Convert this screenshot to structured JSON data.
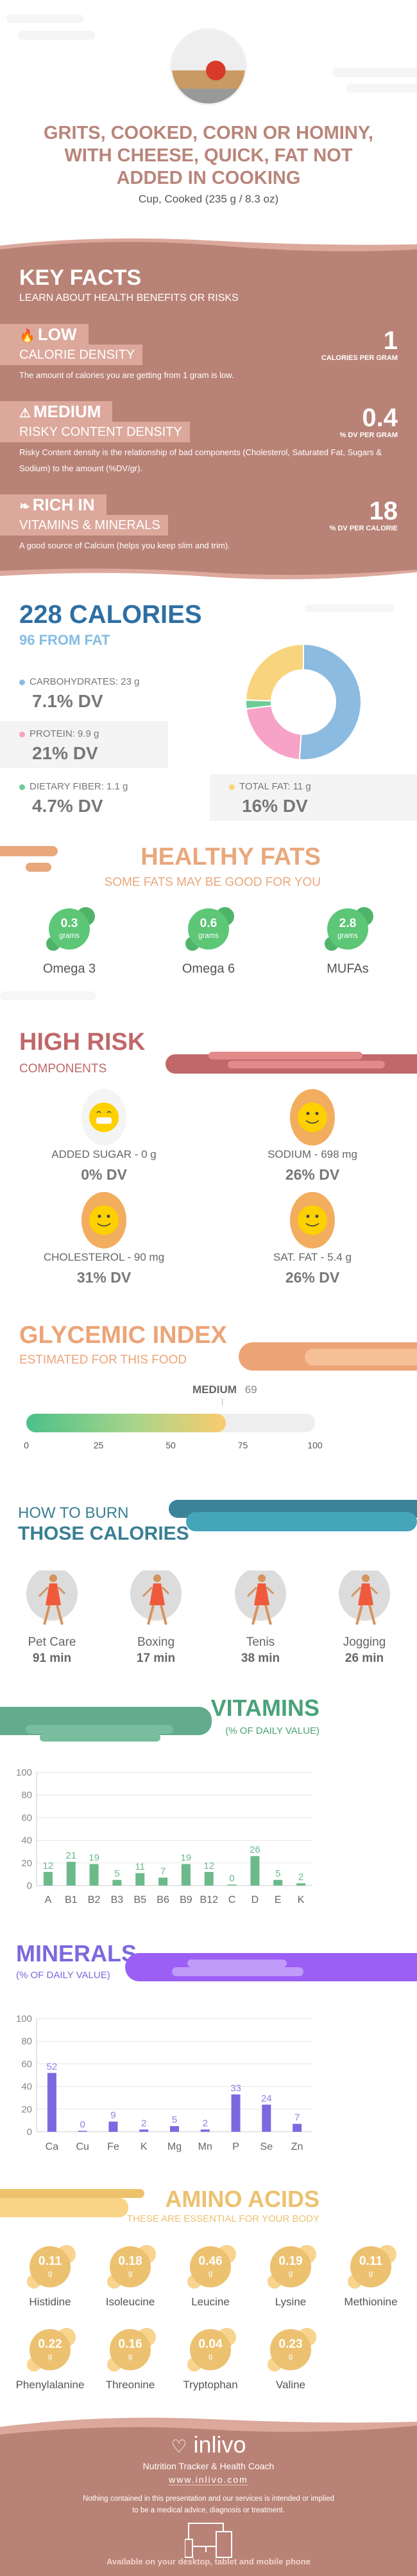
{
  "header": {
    "title_lines": [
      "GRITS, COOKED, CORN OR HOMINY,",
      "WITH CHEESE, QUICK, FAT NOT",
      "ADDED IN COOKING"
    ],
    "serving": "Cup, Cooked (235 g / 8.3 oz)"
  },
  "colors": {
    "brand": "#b98276",
    "tag": "#dca89c",
    "calories": "#2e6fa3",
    "healthy_fats": "#e8a87c",
    "high_risk": "#c0686a",
    "glycemic": "#eca477",
    "burn": "#3a7f93",
    "vitamins": "#4aa27a",
    "minerals": "#7d68e0",
    "amino": "#ecc170"
  },
  "key_facts": {
    "title": "KEY FACTS",
    "subtitle": "LEARN ABOUT HEALTH BENEFITS OR RISKS",
    "items": [
      {
        "icon": "flame-icon",
        "level": "LOW",
        "label": "CALORIE DENSITY",
        "value": "1",
        "unit": "CALORIES PER GRAM",
        "description": "The amount of calories you are getting from 1 gram is low."
      },
      {
        "icon": "warning-icon",
        "level": "MEDIUM",
        "label": "RISKY CONTENT DENSITY",
        "value": "0.4",
        "unit": "% DV PER GRAM",
        "description": "Risky Content density is the relationship of bad components (Cholesterol, Saturated Fat, Sugars & Sodium) to the amount (%DV/gr)."
      },
      {
        "icon": "leaf-icon",
        "level": "RICH  IN",
        "label": "VITAMINS & MINERALS",
        "value": "18",
        "unit": "% DV PER CALORIE",
        "description": "A good source of Calcium (helps you keep slim and trim)."
      }
    ]
  },
  "calories": {
    "title": "228 CALORIES",
    "from_fat": "96 FROM FAT",
    "macros": [
      {
        "label": "CARBOHYDRATES: 23 g",
        "dv": "7.1% DV",
        "grams": 23,
        "color": "#8bbbe0"
      },
      {
        "label": "PROTEIN: 9.9 g",
        "dv": "21% DV",
        "grams": 9.9,
        "color": "#f7a3c8"
      },
      {
        "label": "DIETARY FIBER: 1.1 g",
        "dv": "4.7% DV",
        "grams": 1.1,
        "color": "#6ecb98"
      },
      {
        "label": "TOTAL FAT: 11 g",
        "dv": "16% DV",
        "grams": 11,
        "color": "#f9d47f"
      }
    ]
  },
  "healthy_fats": {
    "title": "HEALTHY FATS",
    "subtitle": "SOME FATS MAY BE GOOD FOR YOU",
    "items": [
      {
        "value": "0.3",
        "unit": "grams",
        "name": "Omega 3"
      },
      {
        "value": "0.6",
        "unit": "grams",
        "name": "Omega 6"
      },
      {
        "value": "2.8",
        "unit": "grams",
        "name": "MUFAs"
      }
    ]
  },
  "high_risk": {
    "title": "HIGH RISK",
    "subtitle": "COMPONENTS",
    "items": [
      {
        "label": "ADDED SUGAR - 0 g",
        "dv": "0% DV",
        "icon": "grinning-face-icon"
      },
      {
        "label": "SODIUM - 698 mg",
        "dv": "26% DV",
        "icon": "smiley-face-icon"
      },
      {
        "label": "CHOLESTEROL - 90 mg",
        "dv": "31% DV",
        "icon": "smiley-face-icon"
      },
      {
        "label": "SAT. FAT - 5.4 g",
        "dv": "26% DV",
        "icon": "smiley-face-icon"
      }
    ]
  },
  "glycemic": {
    "title": "GLYCEMIC INDEX",
    "subtitle": "ESTIMATED FOR THIS FOOD",
    "level": "MEDIUM",
    "value": "69",
    "ticks": [
      "0",
      "25",
      "50",
      "75",
      "100"
    ]
  },
  "burn": {
    "title_top": "HOW TO BURN",
    "title_bottom": "THOSE CALORIES",
    "items": [
      {
        "name": "Pet Care",
        "time": "91 min",
        "icon": "dog-walking-icon"
      },
      {
        "name": "Boxing",
        "time": "17 min",
        "icon": "boxing-icon"
      },
      {
        "name": "Tenis",
        "time": "38 min",
        "icon": "tennis-icon"
      },
      {
        "name": "Jogging",
        "time": "26 min",
        "icon": "jogging-icon"
      }
    ]
  },
  "chart_data": [
    {
      "type": "bar",
      "title": "VITAMINS",
      "subtitle": "(% OF DAILY VALUE)",
      "categories": [
        "A",
        "B1",
        "B2",
        "B3",
        "B5",
        "B6",
        "B9",
        "B12",
        "C",
        "D",
        "E",
        "K"
      ],
      "values": [
        12,
        21,
        19,
        5,
        11,
        7,
        19,
        12,
        0,
        26,
        5,
        2
      ],
      "yticks": [
        "0",
        "20",
        "40",
        "60",
        "80",
        "100"
      ],
      "ylim": [
        0,
        100
      ],
      "grid": true,
      "color": "#6cb98a"
    },
    {
      "type": "bar",
      "title": "MINERALS",
      "subtitle": "(% OF DAILY VALUE)",
      "categories": [
        "Ca",
        "Cu",
        "Fe",
        "K",
        "Mg",
        "Mn",
        "P",
        "Se",
        "Zn"
      ],
      "values": [
        52,
        0,
        9,
        2,
        5,
        2,
        33,
        24,
        7
      ],
      "yticks": [
        "0",
        "20",
        "40",
        "60",
        "80",
        "100"
      ],
      "ylim": [
        0,
        100
      ],
      "grid": true,
      "color": "#7d68e0"
    }
  ],
  "amino": {
    "title": "AMINO ACIDS",
    "subtitle": "THESE ARE ESSENTIAL FOR YOUR BODY",
    "items": [
      {
        "value": "0.11",
        "unit": "g",
        "name": "Histidine"
      },
      {
        "value": "0.18",
        "unit": "g",
        "name": "Isoleucine"
      },
      {
        "value": "0.46",
        "unit": "g",
        "name": "Leucine"
      },
      {
        "value": "0.19",
        "unit": "g",
        "name": "Lysine"
      },
      {
        "value": "0.11",
        "unit": "g",
        "name": "Methionine"
      },
      {
        "value": "0.22",
        "unit": "g",
        "name": "Phenylalanine"
      },
      {
        "value": "0.16",
        "unit": "g",
        "name": "Threonine"
      },
      {
        "value": "0.04",
        "unit": "g",
        "name": "Tryptophan"
      },
      {
        "value": "0.23",
        "unit": "g",
        "name": "Valine"
      }
    ]
  },
  "footer": {
    "brand": "inlivo",
    "tagline": "Nutrition Tracker & Health Coach",
    "url": "www.inlivo.com",
    "disclaimer_lines": [
      "Nothing contained in this presentation and our services is intended or implied",
      "to be a medical advice, diagnosis or treatment."
    ],
    "available": "Available on your desktop, tablet and mobile phone"
  }
}
